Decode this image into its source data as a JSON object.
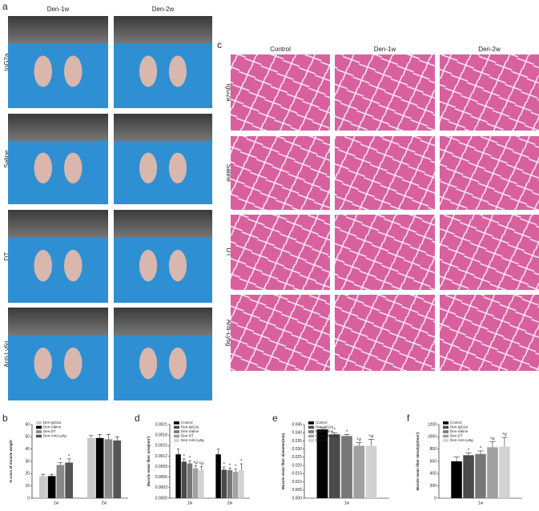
{
  "panel_labels": [
    "a",
    "b",
    "c",
    "d",
    "e",
    "f"
  ],
  "panel_a": {
    "columns": [
      "Den-1w",
      "Den-2w"
    ],
    "rows": [
      "IgG2a",
      "Saline",
      "DT",
      "Anti-Ly6g"
    ]
  },
  "panel_c": {
    "columns": [
      "Control",
      "Den-1w",
      "Den-2w"
    ],
    "rows": [
      "IgG2a",
      "Saline",
      "DT",
      "Anti-Ly6g"
    ]
  },
  "chart_data": [
    {
      "type": "bar",
      "ylabel": "% Loss of muscle weight",
      "categories": [
        "1w",
        "2w"
      ],
      "series": [
        {
          "name": "Den-IgG2a",
          "color": "#c8c8c8",
          "values": [
            18,
            49
          ],
          "errors": [
            1.5,
            2
          ],
          "annotations": [
            null,
            null
          ]
        },
        {
          "name": "Den-Saline",
          "color": "#000000",
          "values": [
            18,
            49
          ],
          "errors": [
            1.5,
            3
          ],
          "annotations": [
            null,
            null
          ]
        },
        {
          "name": "Den-DT",
          "color": "#888888",
          "values": [
            27,
            48
          ],
          "errors": [
            2,
            4
          ],
          "annotations": [
            "*",
            null
          ]
        },
        {
          "name": "Den-Anti-Ly6g",
          "color": "#555555",
          "values": [
            29,
            47
          ],
          "errors": [
            3,
            3
          ],
          "annotations": [
            "*",
            null
          ]
        }
      ],
      "ylim": [
        0,
        60
      ],
      "yticks": [
        0,
        10,
        20,
        30,
        40,
        50,
        60
      ],
      "legend": "top-left"
    },
    {
      "type": "bar",
      "ylabel": "Muscle mean fiber area(mm²)",
      "categories": [
        "1w",
        "2w"
      ],
      "series": [
        {
          "name": "Control",
          "color": "#000000",
          "values": [
            0.00125,
            0.00125
          ],
          "errors": [
            0.00015,
            0.00015
          ],
          "annotations": [
            null,
            null
          ]
        },
        {
          "name": "Den-IgG2a",
          "color": "#4a4a4a",
          "values": [
            0.00104,
            0.00081
          ],
          "errors": [
            8e-05,
            8e-05
          ],
          "annotations": [
            "*",
            "*"
          ]
        },
        {
          "name": "Den-Saline",
          "color": "#777777",
          "values": [
            0.00099,
            0.0008
          ],
          "errors": [
            8e-05,
            6e-05
          ],
          "annotations": [
            "*",
            "*"
          ]
        },
        {
          "name": "Den-DT",
          "color": "#a0a0a0",
          "values": [
            0.00085,
            0.00075
          ],
          "errors": [
            7e-05,
            8e-05
          ],
          "annotations": [
            "*#",
            "*"
          ]
        },
        {
          "name": "Den-Anti-Ly6g",
          "color": "#d2d2d2",
          "values": [
            0.0008,
            0.0008
          ],
          "errors": [
            0.0001,
            0.00018
          ],
          "annotations": [
            "*#",
            "*"
          ]
        }
      ],
      "ylim": [
        0,
        0.0021
      ],
      "yticks": [
        {
          "value": 0,
          "label": "0.0000"
        },
        {
          "value": 0.0003,
          "label": "0.0003"
        },
        {
          "value": 0.0006,
          "label": "0.0006"
        },
        {
          "value": 0.0009,
          "label": "0.0009"
        },
        {
          "value": 0.0012,
          "label": "0.0012"
        },
        {
          "value": 0.0015,
          "label": "0.0015"
        },
        {
          "value": 0.0018,
          "label": "0.0018"
        },
        {
          "value": 0.0021,
          "label": "0.0021"
        }
      ],
      "legend": "top-left"
    },
    {
      "type": "bar",
      "ylabel": "Muscle mean fiber diameter(mm)",
      "categories": [
        "1w"
      ],
      "series": [
        {
          "name": "Control",
          "color": "#000000",
          "values": [
            0.042
          ],
          "errors": [
            0.001
          ],
          "annotations": [
            null
          ]
        },
        {
          "name": "Den-IgG2a",
          "color": "#4a4a4a",
          "values": [
            0.039
          ],
          "errors": [
            0.001
          ],
          "annotations": [
            "*"
          ]
        },
        {
          "name": "Den-Saline",
          "color": "#777777",
          "values": [
            0.038
          ],
          "errors": [
            0.001
          ],
          "annotations": [
            "*"
          ]
        },
        {
          "name": "Den-Anti-Ly6g",
          "color": "#a0a0a0",
          "values": [
            0.032
          ],
          "errors": [
            0.002
          ],
          "annotations": [
            "*#"
          ]
        },
        {
          "name": "Den-DT",
          "color": "#d2d2d2",
          "values": [
            0.032
          ],
          "errors": [
            0.004
          ],
          "annotations": [
            "*#"
          ]
        }
      ],
      "ylim": [
        0,
        0.045
      ],
      "yticks": [
        {
          "value": 0,
          "label": "0.000"
        },
        {
          "value": 0.005,
          "label": "0.005"
        },
        {
          "value": 0.01,
          "label": "0.010"
        },
        {
          "value": 0.015,
          "label": "0.015"
        },
        {
          "value": 0.02,
          "label": "0.020"
        },
        {
          "value": 0.025,
          "label": "0.025"
        },
        {
          "value": 0.03,
          "label": "0.030"
        },
        {
          "value": 0.035,
          "label": "0.035"
        },
        {
          "value": 0.04,
          "label": "0.040"
        },
        {
          "value": 0.045,
          "label": "0.045"
        }
      ],
      "legend": "top-left"
    },
    {
      "type": "bar",
      "ylabel": "Muscle mean fiber density(n/mm²)",
      "categories": [
        "1w"
      ],
      "series": [
        {
          "name": "Control",
          "color": "#000000",
          "values": [
            600
          ],
          "errors": [
            70
          ],
          "annotations": [
            null
          ]
        },
        {
          "name": "Den-IgG2a",
          "color": "#4a4a4a",
          "values": [
            700
          ],
          "errors": [
            40
          ],
          "annotations": [
            "*"
          ]
        },
        {
          "name": "Den-Saline",
          "color": "#777777",
          "values": [
            720
          ],
          "errors": [
            50
          ],
          "annotations": [
            "*"
          ]
        },
        {
          "name": "Den-DT",
          "color": "#a0a0a0",
          "values": [
            830
          ],
          "errors": [
            90
          ],
          "annotations": [
            "*#"
          ]
        },
        {
          "name": "Den-Anti-Ly6g",
          "color": "#d2d2d2",
          "values": [
            840
          ],
          "errors": [
            150
          ],
          "annotations": [
            "*#"
          ]
        }
      ],
      "ylim": [
        0,
        1200
      ],
      "yticks": [
        0,
        200,
        400,
        600,
        800,
        1000,
        1200
      ],
      "legend": "top-left"
    }
  ]
}
